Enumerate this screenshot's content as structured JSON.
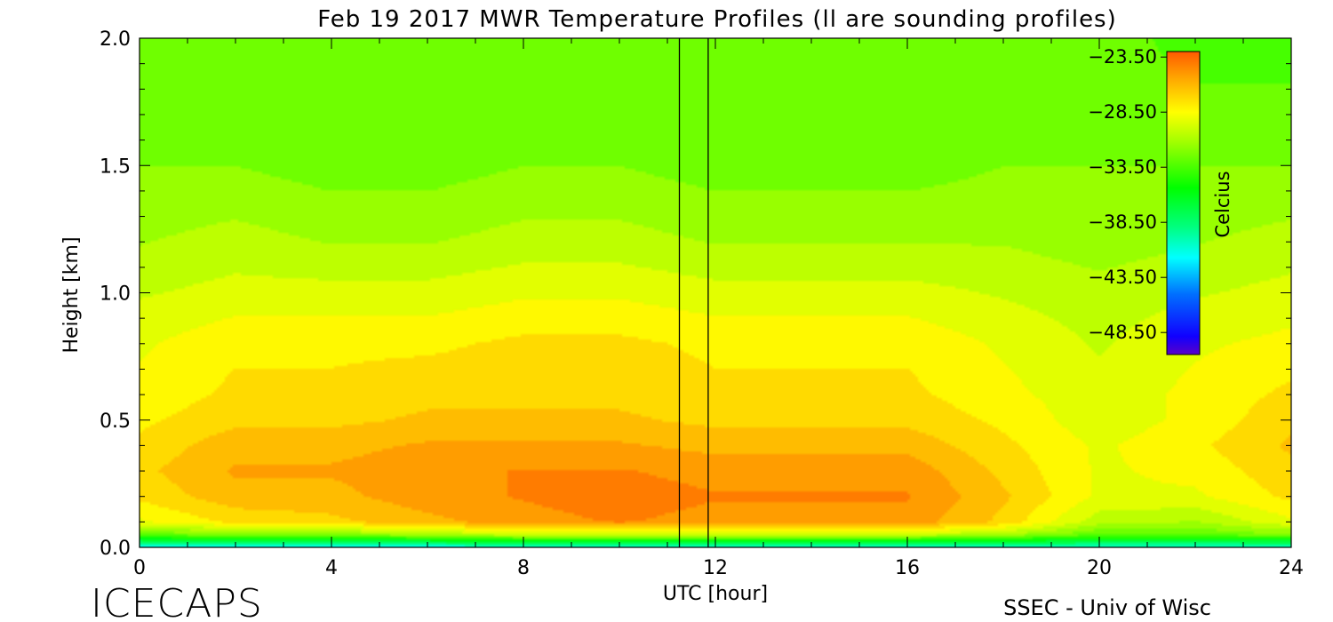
{
  "title": "Feb 19 2017 MWR Temperature Profiles (ll are sounding profiles)",
  "footer": {
    "left": "ICECAPS",
    "right": "SSEC - Univ of Wisc"
  },
  "chart_data": {
    "type": "heatmap",
    "title": "Feb 19 2017 MWR Temperature Profiles (ll are sounding profiles)",
    "xlabel": "UTC [hour]",
    "ylabel": "Height [km]",
    "xlim": [
      0,
      24
    ],
    "ylim": [
      0,
      2
    ],
    "xticks": [
      "0",
      "4",
      "8",
      "12",
      "16",
      "20",
      "24"
    ],
    "xtick_values": [
      0,
      4,
      8,
      12,
      16,
      20,
      24
    ],
    "yticks": [
      "0.0",
      "0.5",
      "1.0",
      "1.5",
      "2.0"
    ],
    "ytick_values": [
      0,
      0.5,
      1.0,
      1.5,
      2.0
    ],
    "grid": false,
    "colorbar": {
      "label": "Celcius",
      "min": -50.5,
      "max": -23.0,
      "tick_values": [
        -23.5,
        -28.5,
        -33.5,
        -38.5,
        -43.5,
        -48.5
      ],
      "tick_labels": [
        "−23.50",
        "−28.50",
        "−33.50",
        "−38.50",
        "−43.50",
        "−48.50"
      ],
      "placement": "top-right inside plot"
    },
    "sounding_profiles_utc_hour": [
      11.25,
      11.85
    ],
    "colors": {
      "warm": "#ff5a00",
      "orange": "#ffa000",
      "yellow": "#ffff00",
      "green": "#00ff00",
      "cyan": "#00ffff",
      "cold": "#1000ff"
    },
    "temperature_grid_celsius": {
      "x_hours": [
        0,
        2,
        4,
        6,
        8,
        10,
        12,
        14,
        16,
        18,
        20,
        22,
        24
      ],
      "y_km": [
        0.0,
        0.05,
        0.1,
        0.2,
        0.3,
        0.4,
        0.5,
        0.6,
        0.8,
        1.0,
        1.2,
        1.5,
        1.8,
        2.0
      ],
      "values": [
        [
          -42,
          -42,
          -42,
          -42,
          -41,
          -41,
          -41,
          -41,
          -41,
          -41,
          -41,
          -41,
          -41
        ],
        [
          -33,
          -32,
          -32,
          -31,
          -30,
          -30,
          -30,
          -30,
          -30,
          -31,
          -33,
          -33,
          -32
        ],
        [
          -29,
          -27.5,
          -27,
          -26,
          -25,
          -24.5,
          -25,
          -25,
          -25,
          -27,
          -30.5,
          -31,
          -29
        ],
        [
          -27.5,
          -26,
          -26,
          -25,
          -24.5,
          -24,
          -24.5,
          -24.5,
          -24.5,
          -26.5,
          -29,
          -29,
          -27.5
        ],
        [
          -27,
          -25.5,
          -25.5,
          -25,
          -24.5,
          -24.5,
          -25,
          -25,
          -25,
          -27,
          -29,
          -28.5,
          -27
        ],
        [
          -27.5,
          -26,
          -26,
          -25.5,
          -25.5,
          -25.5,
          -26,
          -26,
          -26,
          -27.5,
          -29,
          -28,
          -26.5
        ],
        [
          -28,
          -27,
          -27,
          -26.5,
          -26.5,
          -26.5,
          -27,
          -27,
          -27,
          -28,
          -29.5,
          -28.5,
          -27
        ],
        [
          -28.5,
          -27.5,
          -27.5,
          -27,
          -27,
          -27,
          -27.5,
          -27.5,
          -27.5,
          -28.5,
          -29.5,
          -28.5,
          -27.5
        ],
        [
          -29,
          -28,
          -28,
          -28,
          -27.5,
          -27.5,
          -28,
          -28,
          -28,
          -29,
          -30,
          -29,
          -28.5
        ],
        [
          -30,
          -29.5,
          -29.5,
          -29.5,
          -29,
          -29,
          -29.5,
          -29.5,
          -29.5,
          -30,
          -30.5,
          -30,
          -29.5
        ],
        [
          -31,
          -30.5,
          -31,
          -31,
          -30.5,
          -30.5,
          -31,
          -31,
          -31,
          -31,
          -31.5,
          -31,
          -30.5
        ],
        [
          -32,
          -32,
          -32.5,
          -32.5,
          -32,
          -32,
          -32.5,
          -32.5,
          -32.5,
          -32,
          -32,
          -32,
          -32
        ],
        [
          -32.5,
          -33,
          -33,
          -33,
          -32.5,
          -32.5,
          -33,
          -33,
          -33,
          -32.5,
          -32.5,
          -33,
          -33
        ],
        [
          -32.5,
          -33,
          -33,
          -33,
          -33,
          -33,
          -33,
          -33,
          -33,
          -32.5,
          -32.5,
          -33.5,
          -33.5
        ]
      ]
    }
  }
}
